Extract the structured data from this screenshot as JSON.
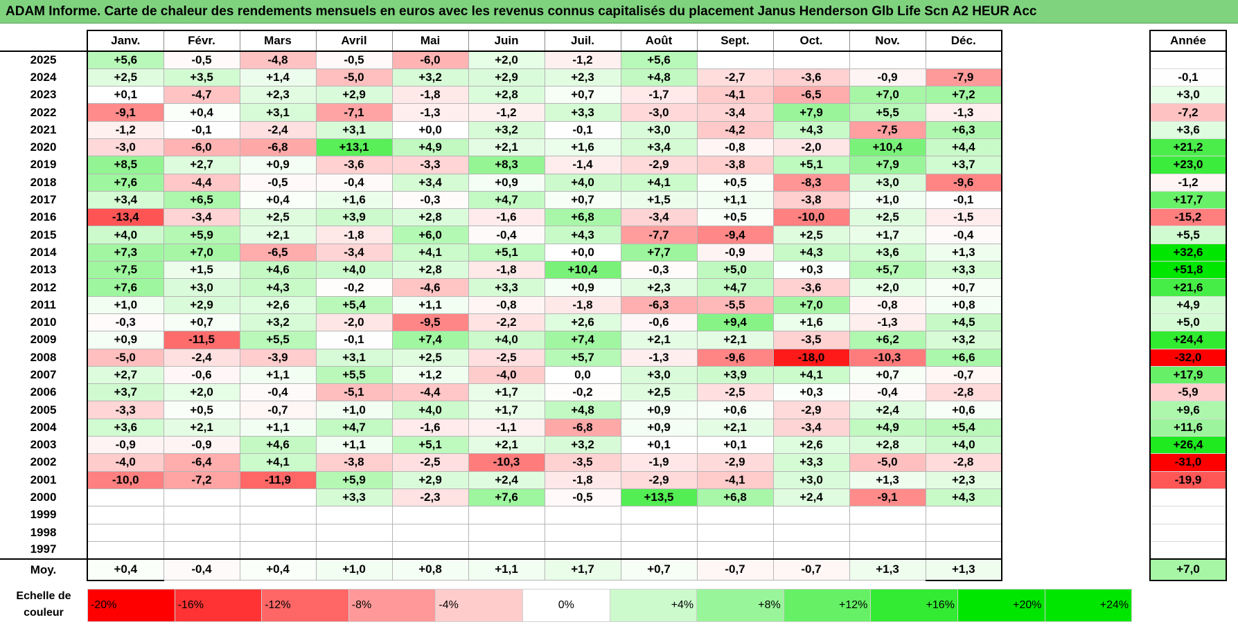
{
  "title": "ADAM Informe. Carte de chaleur des rendements mensuels en euros avec les revenus connus capitalisés du placement Janus Henderson Glb Life Scn A2 HEUR Acc",
  "chart_data": {
    "type": "heatmap",
    "title": "ADAM Informe. Carte de chaleur des rendements mensuels en euros avec les revenus connus capitalisés du placement Janus Henderson Glb Life Scn A2 HEUR Acc",
    "months": [
      "Janv.",
      "Févr.",
      "Mars",
      "Avril",
      "Mai",
      "Juin",
      "Juil.",
      "Août",
      "Sept.",
      "Oct.",
      "Nov.",
      "Déc."
    ],
    "year_header": "Année",
    "rows": [
      {
        "year": "2025",
        "months": [
          "+5,6",
          "-0,5",
          "-4,8",
          "-0,5",
          "-6,0",
          "+2,0",
          "-1,2",
          "+5,6",
          "",
          "",
          "",
          ""
        ],
        "annual": ""
      },
      {
        "year": "2024",
        "months": [
          "+2,5",
          "+3,5",
          "+1,4",
          "-5,0",
          "+3,2",
          "+2,9",
          "+2,3",
          "+4,8",
          "-2,7",
          "-3,6",
          "-0,9",
          "-7,9"
        ],
        "annual": "-0,1"
      },
      {
        "year": "2023",
        "months": [
          "+0,1",
          "-4,7",
          "+2,3",
          "+2,9",
          "-1,8",
          "+2,8",
          "+0,7",
          "-1,7",
          "-4,1",
          "-6,5",
          "+7,0",
          "+7,2"
        ],
        "annual": "+3,0"
      },
      {
        "year": "2022",
        "months": [
          "-9,1",
          "+0,4",
          "+3,1",
          "-7,1",
          "-1,3",
          "-1,2",
          "+3,3",
          "-3,0",
          "-3,4",
          "+7,9",
          "+5,5",
          "-1,3"
        ],
        "annual": "-7,2"
      },
      {
        "year": "2021",
        "months": [
          "-1,2",
          "-0,1",
          "-2,4",
          "+3,1",
          "+0,0",
          "+3,2",
          "-0,1",
          "+3,0",
          "-4,2",
          "+4,3",
          "-7,5",
          "+6,3"
        ],
        "annual": "+3,6"
      },
      {
        "year": "2020",
        "months": [
          "-3,0",
          "-6,0",
          "-6,8",
          "+13,1",
          "+4,9",
          "+2,1",
          "+1,6",
          "+3,4",
          "-0,8",
          "-2,0",
          "+10,4",
          "+4,4"
        ],
        "annual": "+21,2"
      },
      {
        "year": "2019",
        "months": [
          "+8,5",
          "+2,7",
          "+0,9",
          "-3,6",
          "-3,3",
          "+8,3",
          "-1,4",
          "-2,9",
          "-3,8",
          "+5,1",
          "+7,9",
          "+3,7"
        ],
        "annual": "+23,0"
      },
      {
        "year": "2018",
        "months": [
          "+7,6",
          "-4,4",
          "-0,5",
          "-0,4",
          "+3,4",
          "+0,9",
          "+4,0",
          "+4,1",
          "+0,5",
          "-8,3",
          "+3,0",
          "-9,6"
        ],
        "annual": "-1,2"
      },
      {
        "year": "2017",
        "months": [
          "+3,4",
          "+6,5",
          "+0,4",
          "+1,6",
          "-0,3",
          "+4,7",
          "+0,7",
          "+1,5",
          "+1,1",
          "-3,8",
          "+1,0",
          "-0,1"
        ],
        "annual": "+17,7"
      },
      {
        "year": "2016",
        "months": [
          "-13,4",
          "-3,4",
          "+2,5",
          "+3,9",
          "+2,8",
          "-1,6",
          "+6,8",
          "-3,4",
          "+0,5",
          "-10,0",
          "+2,5",
          "-1,5"
        ],
        "annual": "-15,2"
      },
      {
        "year": "2015",
        "months": [
          "+4,0",
          "+5,9",
          "+2,1",
          "-1,8",
          "+6,0",
          "-0,4",
          "+4,3",
          "-7,7",
          "-9,4",
          "+2,5",
          "+1,7",
          "-0,4"
        ],
        "annual": "+5,5"
      },
      {
        "year": "2014",
        "months": [
          "+7,3",
          "+7,0",
          "-6,5",
          "-3,4",
          "+4,1",
          "+5,1",
          "+0,0",
          "+7,7",
          "-0,9",
          "+4,3",
          "+3,6",
          "+1,3"
        ],
        "annual": "+32,6"
      },
      {
        "year": "2013",
        "months": [
          "+7,5",
          "+1,5",
          "+4,6",
          "+4,0",
          "+2,8",
          "-1,8",
          "+10,4",
          "-0,3",
          "+5,0",
          "+0,3",
          "+5,7",
          "+3,3"
        ],
        "annual": "+51,8"
      },
      {
        "year": "2012",
        "months": [
          "+7,6",
          "+3,0",
          "+4,3",
          "-0,2",
          "-4,6",
          "+3,3",
          "+0,9",
          "+2,3",
          "+4,7",
          "-3,6",
          "+2,0",
          "+0,7"
        ],
        "annual": "+21,6"
      },
      {
        "year": "2011",
        "months": [
          "+1,0",
          "+2,9",
          "+2,6",
          "+5,4",
          "+1,1",
          "-0,8",
          "-1,8",
          "-6,3",
          "-5,5",
          "+7,0",
          "-0,8",
          "+0,8"
        ],
        "annual": "+4,9"
      },
      {
        "year": "2010",
        "months": [
          "-0,3",
          "+0,7",
          "+3,2",
          "-2,0",
          "-9,5",
          "-2,2",
          "+2,6",
          "-0,6",
          "+9,4",
          "+1,6",
          "-1,3",
          "+4,5"
        ],
        "annual": "+5,0"
      },
      {
        "year": "2009",
        "months": [
          "+0,9",
          "-11,5",
          "+5,5",
          "-0,1",
          "+7,4",
          "+4,0",
          "+7,4",
          "+2,1",
          "+2,1",
          "-3,5",
          "+6,2",
          "+3,2"
        ],
        "annual": "+24,4"
      },
      {
        "year": "2008",
        "months": [
          "-5,0",
          "-2,4",
          "-3,9",
          "+3,1",
          "+2,5",
          "-2,5",
          "+5,7",
          "-1,3",
          "-9,6",
          "-18,0",
          "-10,3",
          "+6,6"
        ],
        "annual": "-32,0"
      },
      {
        "year": "2007",
        "months": [
          "+2,7",
          "-0,6",
          "+1,1",
          "+5,5",
          "+1,2",
          "-4,0",
          "0,0",
          "+3,0",
          "+3,9",
          "+4,1",
          "+0,7",
          "-0,7"
        ],
        "annual": "+17,9"
      },
      {
        "year": "2006",
        "months": [
          "+3,7",
          "+2,0",
          "-0,4",
          "-5,1",
          "-4,4",
          "+1,7",
          "-0,2",
          "+2,5",
          "-2,5",
          "+0,3",
          "-0,4",
          "-2,8"
        ],
        "annual": "-5,9"
      },
      {
        "year": "2005",
        "months": [
          "-3,3",
          "+0,5",
          "-0,7",
          "+1,0",
          "+4,0",
          "+1,7",
          "+4,8",
          "+0,9",
          "+0,6",
          "-2,9",
          "+2,4",
          "+0,6"
        ],
        "annual": "+9,6"
      },
      {
        "year": "2004",
        "months": [
          "+3,6",
          "+2,1",
          "+1,1",
          "+4,7",
          "-1,6",
          "-1,1",
          "-6,8",
          "+0,9",
          "+2,1",
          "-3,4",
          "+4,9",
          "+5,4"
        ],
        "annual": "+11,6"
      },
      {
        "year": "2003",
        "months": [
          "-0,9",
          "-0,9",
          "+4,6",
          "+1,1",
          "+5,1",
          "+2,1",
          "+3,2",
          "+0,1",
          "+0,1",
          "+2,6",
          "+2,8",
          "+4,0"
        ],
        "annual": "+26,4"
      },
      {
        "year": "2002",
        "months": [
          "-4,0",
          "-6,4",
          "+4,1",
          "-3,8",
          "-2,5",
          "-10,3",
          "-3,5",
          "-1,9",
          "-2,9",
          "+3,3",
          "-5,0",
          "-2,8"
        ],
        "annual": "-31,0"
      },
      {
        "year": "2001",
        "months": [
          "-10,0",
          "-7,2",
          "-11,9",
          "+5,9",
          "+2,9",
          "+2,4",
          "-1,8",
          "-2,9",
          "-4,1",
          "+3,0",
          "+1,3",
          "+2,3"
        ],
        "annual": "-19,9"
      },
      {
        "year": "2000",
        "months": [
          "",
          "",
          "",
          "+3,3",
          "-2,3",
          "+7,6",
          "-0,5",
          "+13,5",
          "+6,8",
          "+2,4",
          "-9,1",
          "+4,3"
        ],
        "annual": ""
      },
      {
        "year": "1999",
        "months": [
          "",
          "",
          "",
          "",
          "",
          "",
          "",
          "",
          "",
          "",
          "",
          ""
        ],
        "annual": ""
      },
      {
        "year": "1998",
        "months": [
          "",
          "",
          "",
          "",
          "",
          "",
          "",
          "",
          "",
          "",
          "",
          ""
        ],
        "annual": ""
      },
      {
        "year": "1997",
        "months": [
          "",
          "",
          "",
          "",
          "",
          "",
          "",
          "",
          "",
          "",
          "",
          ""
        ],
        "annual": ""
      }
    ],
    "average": {
      "label": "Moy.",
      "months": [
        "+0,4",
        "-0,4",
        "+0,4",
        "+1,0",
        "+0,8",
        "+1,1",
        "+1,7",
        "+0,7",
        "-0,7",
        "-0,7",
        "+1,3",
        "+1,3"
      ],
      "annual": "+7,0"
    },
    "scale": {
      "label_line1": "Echelle de",
      "label_line2": "couleur",
      "steps": [
        "-20%",
        "-16%",
        "-12%",
        "-8%",
        "-4%",
        "0%",
        "+4%",
        "+8%",
        "+12%",
        "+16%",
        "+20%",
        "+24%"
      ],
      "values": [
        -20,
        -16,
        -12,
        -8,
        -4,
        0,
        4,
        8,
        12,
        16,
        20,
        24
      ]
    },
    "colors": {
      "negative_full": "#ff0000",
      "positive_full": "#00e600",
      "neutral": "#ffffff",
      "title_bar": "#7fd37f"
    }
  }
}
